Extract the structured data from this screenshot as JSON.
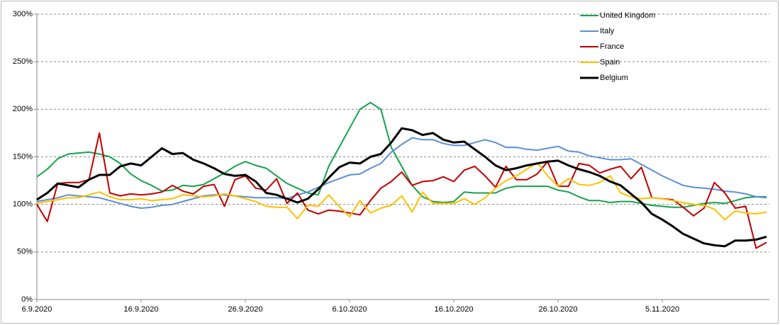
{
  "chart_data": {
    "type": "line",
    "categories": [
      "6.9.2020",
      null,
      null,
      null,
      null,
      null,
      null,
      null,
      null,
      null,
      "16.9.2020",
      null,
      null,
      null,
      null,
      null,
      null,
      null,
      null,
      null,
      "26.9.2020",
      null,
      null,
      null,
      null,
      null,
      null,
      null,
      null,
      null,
      "6.10.2020",
      null,
      null,
      null,
      null,
      null,
      null,
      null,
      null,
      null,
      "16.10.2020",
      null,
      null,
      null,
      null,
      null,
      null,
      null,
      null,
      null,
      "26.10.2020",
      null,
      null,
      null,
      null,
      null,
      null,
      null,
      null,
      null,
      "5.11.2020",
      null,
      null,
      null,
      null,
      null,
      null,
      null,
      null,
      null,
      null
    ],
    "series": [
      {
        "name": "United Kingdom",
        "color": "#16a34a",
        "width": 2,
        "values": [
          129,
          137,
          148,
          153,
          154,
          155,
          153,
          150,
          143,
          132,
          125,
          120,
          114,
          115,
          120,
          119,
          121,
          127,
          133,
          140,
          145,
          141,
          138,
          130,
          122,
          117,
          112,
          110,
          140,
          160,
          180,
          200,
          207,
          200,
          160,
          140,
          120,
          108,
          103,
          102,
          103,
          113,
          112,
          112,
          112,
          117,
          119,
          119,
          119,
          119,
          115,
          113,
          108,
          104,
          104,
          102,
          103,
          103,
          101,
          99,
          98,
          97,
          97,
          99,
          101,
          102,
          101,
          104,
          107,
          108,
          108
        ]
      },
      {
        "name": "Italy",
        "color": "#5b8fd6",
        "width": 2,
        "values": [
          103,
          105,
          107,
          110,
          109,
          108,
          107,
          104,
          101,
          98,
          96,
          97,
          99,
          100,
          103,
          106,
          109,
          110,
          110,
          109,
          108,
          107,
          107,
          107,
          106,
          110,
          113,
          118,
          123,
          127,
          131,
          132,
          138,
          143,
          155,
          163,
          170,
          168,
          168,
          164,
          162,
          162,
          165,
          168,
          165,
          160,
          160,
          158,
          157,
          159,
          161,
          156,
          155,
          151,
          149,
          147,
          147,
          148,
          142,
          136,
          130,
          125,
          120,
          118,
          117,
          116,
          114,
          113,
          111,
          108,
          107
        ]
      },
      {
        "name": "France",
        "color": "#c00000",
        "width": 2,
        "values": [
          100,
          82,
          122,
          123,
          123,
          126,
          175,
          112,
          109,
          111,
          110,
          111,
          113,
          120,
          114,
          111,
          119,
          121,
          98,
          126,
          130,
          117,
          115,
          127,
          101,
          112,
          94,
          90,
          94,
          93,
          91,
          89,
          104,
          117,
          124,
          134,
          120,
          124,
          125,
          129,
          124,
          136,
          140,
          130,
          118,
          140,
          126,
          126,
          132,
          145,
          119,
          119,
          143,
          141,
          133,
          137,
          140,
          127,
          139,
          107,
          106,
          105,
          97,
          88,
          96,
          123,
          112,
          96,
          98,
          54,
          60
        ]
      },
      {
        "name": "Spain",
        "color": "#ffc000",
        "width": 2,
        "values": [
          101,
          103,
          105,
          107,
          107,
          110,
          113,
          108,
          105,
          105,
          106,
          104,
          105,
          106,
          110,
          109,
          108,
          109,
          111,
          109,
          106,
          103,
          98,
          97,
          97,
          85,
          99,
          98,
          110,
          98,
          87,
          104,
          91,
          96,
          99,
          109,
          92,
          113,
          101,
          101,
          101,
          106,
          100,
          107,
          117,
          125,
          130,
          137,
          144,
          130,
          119,
          127,
          121,
          120,
          123,
          130,
          112,
          108,
          106,
          107,
          106,
          104,
          102,
          100,
          99,
          95,
          84,
          93,
          91,
          90,
          92
        ]
      },
      {
        "name": "Belgium",
        "color": "#000000",
        "width": 3,
        "values": [
          105,
          112,
          122,
          120,
          118,
          126,
          131,
          131,
          140,
          143,
          141,
          150,
          159,
          153,
          154,
          147,
          143,
          138,
          132,
          130,
          131,
          124,
          112,
          110,
          106,
          102,
          106,
          116,
          128,
          139,
          144,
          143,
          150,
          153,
          165,
          180,
          178,
          173,
          175,
          168,
          165,
          166,
          158,
          150,
          141,
          136,
          138,
          141,
          143,
          145,
          146,
          141,
          137,
          134,
          130,
          124,
          120,
          111,
          102,
          90,
          84,
          77,
          69,
          64,
          59,
          57,
          56,
          62,
          62,
          63,
          66
        ]
      }
    ],
    "ylim": [
      0,
      300
    ],
    "yticks": [
      {
        "value": 0,
        "label": "0%"
      },
      {
        "value": 50,
        "label": "50%"
      },
      {
        "value": 100,
        "label": "100%"
      },
      {
        "value": 150,
        "label": "150%"
      },
      {
        "value": 200,
        "label": "200%"
      },
      {
        "value": 250,
        "label": "250%"
      },
      {
        "value": 300,
        "label": "300%"
      }
    ],
    "grid": true,
    "legend": "top-right"
  }
}
